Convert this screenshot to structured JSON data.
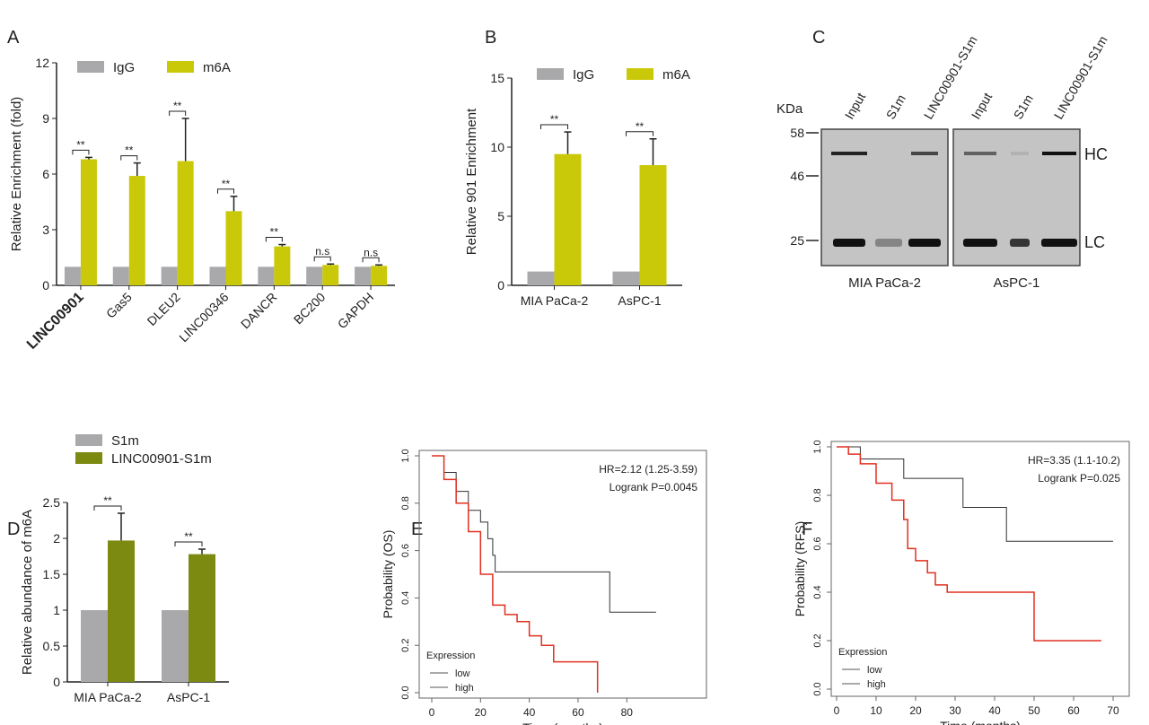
{
  "colors": {
    "igg": "#a9a9ab",
    "m6a": "#c9c90a",
    "s1m": "#a9a9ab",
    "linc": "#7d8a12",
    "low": "#333333",
    "high": "#e03020",
    "highlight": "#e01010"
  },
  "chart_data": [
    {
      "panel": "A",
      "type": "bar",
      "ylabel": "Relative Enrichment (fold)",
      "ylim": [
        0,
        12
      ],
      "yticks": [
        0,
        3,
        6,
        9,
        12
      ],
      "categories": [
        "LINC00901",
        "Gas5",
        "DLEU2",
        "LINC00346",
        "DANCR",
        "BC200",
        "GAPDH"
      ],
      "highlight_category": "LINC00901",
      "series": [
        {
          "name": "IgG",
          "values": [
            1,
            1,
            1,
            1,
            1,
            1,
            1
          ]
        },
        {
          "name": "m6A",
          "values": [
            6.8,
            5.9,
            6.7,
            4.0,
            2.1,
            1.1,
            1.05
          ],
          "error_upper": [
            6.9,
            6.6,
            9.0,
            4.8,
            2.2,
            1.15,
            1.1
          ]
        }
      ],
      "significance": [
        "**",
        "**",
        "**",
        "**",
        "**",
        "n.s",
        "n.s"
      ],
      "legend": "top"
    },
    {
      "panel": "B",
      "type": "bar",
      "ylabel": "Relative 901 Enrichment",
      "ylim": [
        0,
        15
      ],
      "yticks": [
        0,
        5,
        10,
        15
      ],
      "categories": [
        "MIA PaCa-2",
        "AsPC-1"
      ],
      "series": [
        {
          "name": "IgG",
          "values": [
            1,
            1
          ]
        },
        {
          "name": "m6A",
          "values": [
            9.5,
            8.7
          ],
          "error_upper": [
            11.1,
            10.6
          ]
        }
      ],
      "significance": [
        "**",
        "**"
      ],
      "legend": "top"
    },
    {
      "panel": "D",
      "type": "bar",
      "ylabel": "Relative abundance of m6A",
      "ylim": [
        0,
        2.5
      ],
      "yticks": [
        0,
        0.5,
        1.0,
        1.5,
        2.0,
        2.5
      ],
      "categories": [
        "MIA PaCa-2",
        "AsPC-1"
      ],
      "series": [
        {
          "name": "S1m",
          "values": [
            1,
            1
          ]
        },
        {
          "name": "LINC00901-S1m",
          "values": [
            1.97,
            1.78
          ],
          "error_upper": [
            2.35,
            1.85
          ]
        }
      ],
      "significance": [
        "**",
        "**"
      ],
      "legend": "top-left"
    },
    {
      "panel": "E",
      "type": "line",
      "xlabel": "Time (months)",
      "ylabel": "Probability (OS)",
      "xlim": [
        0,
        95
      ],
      "ylim": [
        0,
        1
      ],
      "xticks": [
        0,
        20,
        40,
        60,
        80
      ],
      "yticks": [
        0.0,
        0.2,
        0.4,
        0.6,
        0.8,
        1.0
      ],
      "annotation": [
        "HR=2.12 (1.25-3.59)",
        "Logrank P=0.0045"
      ],
      "legend_title": "Expression",
      "series": [
        {
          "name": "low",
          "x": [
            0,
            5,
            10,
            15,
            20,
            23,
            25,
            26,
            73,
            73,
            92
          ],
          "y": [
            1,
            0.93,
            0.85,
            0.77,
            0.72,
            0.65,
            0.58,
            0.51,
            0.51,
            0.34,
            0.34
          ]
        },
        {
          "name": "high",
          "x": [
            0,
            5,
            10,
            15,
            20,
            25,
            30,
            35,
            40,
            45,
            50,
            68,
            68
          ],
          "y": [
            1,
            0.9,
            0.8,
            0.68,
            0.5,
            0.37,
            0.33,
            0.3,
            0.24,
            0.2,
            0.13,
            0.13,
            0.0
          ]
        }
      ]
    },
    {
      "panel": "F",
      "type": "line",
      "xlabel": "Time (months)",
      "ylabel": "Probability (RFS)",
      "xlim": [
        0,
        70
      ],
      "ylim": [
        0,
        1
      ],
      "xticks": [
        0,
        10,
        20,
        30,
        40,
        50,
        60,
        70
      ],
      "yticks": [
        0.0,
        0.2,
        0.4,
        0.6,
        0.8,
        1.0
      ],
      "annotation": [
        "HR=3.35 (1.1-10.2)",
        "Logrank P=0.025"
      ],
      "legend_title": "Expression",
      "series": [
        {
          "name": "low",
          "x": [
            0,
            6,
            17,
            17,
            32,
            32,
            43,
            43,
            70
          ],
          "y": [
            1,
            0.95,
            0.95,
            0.87,
            0.87,
            0.75,
            0.75,
            0.61,
            0.61
          ]
        },
        {
          "name": "high",
          "x": [
            0,
            3,
            6,
            10,
            14,
            17,
            18,
            20,
            23,
            25,
            28,
            50,
            50,
            67
          ],
          "y": [
            1,
            0.97,
            0.93,
            0.85,
            0.78,
            0.7,
            0.58,
            0.53,
            0.48,
            0.43,
            0.4,
            0.4,
            0.2,
            0.2
          ]
        }
      ]
    }
  ],
  "panel_labels": [
    "A",
    "B",
    "C",
    "D",
    "E",
    "F"
  ],
  "blot": {
    "unit": "KDa",
    "markers": [
      "58",
      "46",
      "25"
    ],
    "lanes": [
      "Input",
      "S1m",
      "LINC00901-S1m",
      "Input",
      "S1m",
      "LINC00901-S1m"
    ],
    "bands": [
      "HC",
      "LC"
    ],
    "cell_lines": [
      "MIA PaCa-2",
      "AsPC-1"
    ]
  }
}
